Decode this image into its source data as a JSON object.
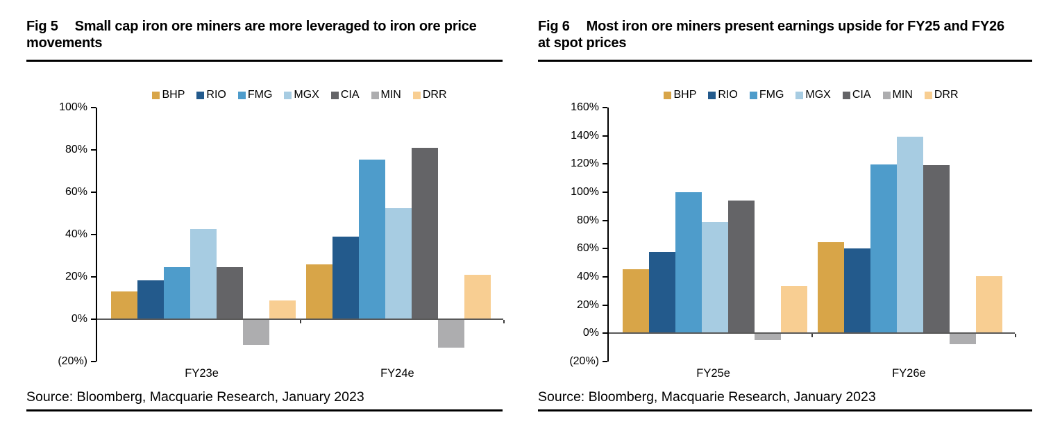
{
  "panels": [
    {
      "fig_label": "Fig 5",
      "title": "Small cap iron ore miners are more leveraged to iron ore price movements",
      "source": "Source: Bloomberg, Macquarie Research, January 2023"
    },
    {
      "fig_label": "Fig 6",
      "title": "Most iron ore miners present earnings upside for FY25 and FY26 at spot prices",
      "source": "Source: Bloomberg, Macquarie Research, January 2023"
    }
  ],
  "chart_data": [
    {
      "type": "bar",
      "title": "Fig 5 Small cap iron ore miners are more leveraged to iron ore price movements",
      "categories": [
        "FY23e",
        "FY24e"
      ],
      "series": [
        {
          "name": "BHP",
          "color": "#D8A548",
          "values": [
            13,
            26
          ]
        },
        {
          "name": "RIO",
          "color": "#235A8C",
          "values": [
            18.5,
            39
          ]
        },
        {
          "name": "FMG",
          "color": "#4E9CCB",
          "values": [
            24.5,
            75.5
          ]
        },
        {
          "name": "MGX",
          "color": "#A7CCE2",
          "values": [
            42.5,
            52.5
          ]
        },
        {
          "name": "CIA",
          "color": "#646467",
          "values": [
            24.5,
            81
          ]
        },
        {
          "name": "MIN",
          "color": "#ADADAF",
          "values": [
            -12,
            -13.5
          ]
        },
        {
          "name": "DRR",
          "color": "#F8CE92",
          "values": [
            9,
            21
          ]
        }
      ],
      "xlabel": "",
      "ylabel": "",
      "ylim": [
        -20,
        100
      ],
      "ytick_step": 20,
      "ytick_labels": [
        "100%",
        "80%",
        "60%",
        "40%",
        "20%",
        "0%",
        "(20%)"
      ],
      "legend_position": "top-center",
      "grid": false,
      "zero_line_color": "#595959",
      "axis_color": "#000000"
    },
    {
      "type": "bar",
      "title": "Fig 6 Most iron ore miners present earnings upside for FY25 and FY26 at spot prices",
      "categories": [
        "FY25e",
        "FY26e"
      ],
      "series": [
        {
          "name": "BHP",
          "color": "#D8A548",
          "values": [
            45.5,
            64.5
          ]
        },
        {
          "name": "RIO",
          "color": "#235A8C",
          "values": [
            57.5,
            60
          ]
        },
        {
          "name": "FMG",
          "color": "#4E9CCB",
          "values": [
            100,
            119.5
          ]
        },
        {
          "name": "MGX",
          "color": "#A7CCE2",
          "values": [
            79,
            139.5
          ]
        },
        {
          "name": "CIA",
          "color": "#646467",
          "values": [
            94,
            119
          ]
        },
        {
          "name": "MIN",
          "color": "#ADADAF",
          "values": [
            -5,
            -7.5
          ]
        },
        {
          "name": "DRR",
          "color": "#F8CE92",
          "values": [
            33.5,
            40.5
          ]
        }
      ],
      "xlabel": "",
      "ylabel": "",
      "ylim": [
        -20,
        160
      ],
      "ytick_step": 20,
      "ytick_labels": [
        "160%",
        "140%",
        "120%",
        "100%",
        "80%",
        "60%",
        "40%",
        "20%",
        "0%",
        "(20%)"
      ],
      "legend_position": "top-center",
      "grid": false,
      "zero_line_color": "#595959",
      "axis_color": "#000000"
    }
  ]
}
